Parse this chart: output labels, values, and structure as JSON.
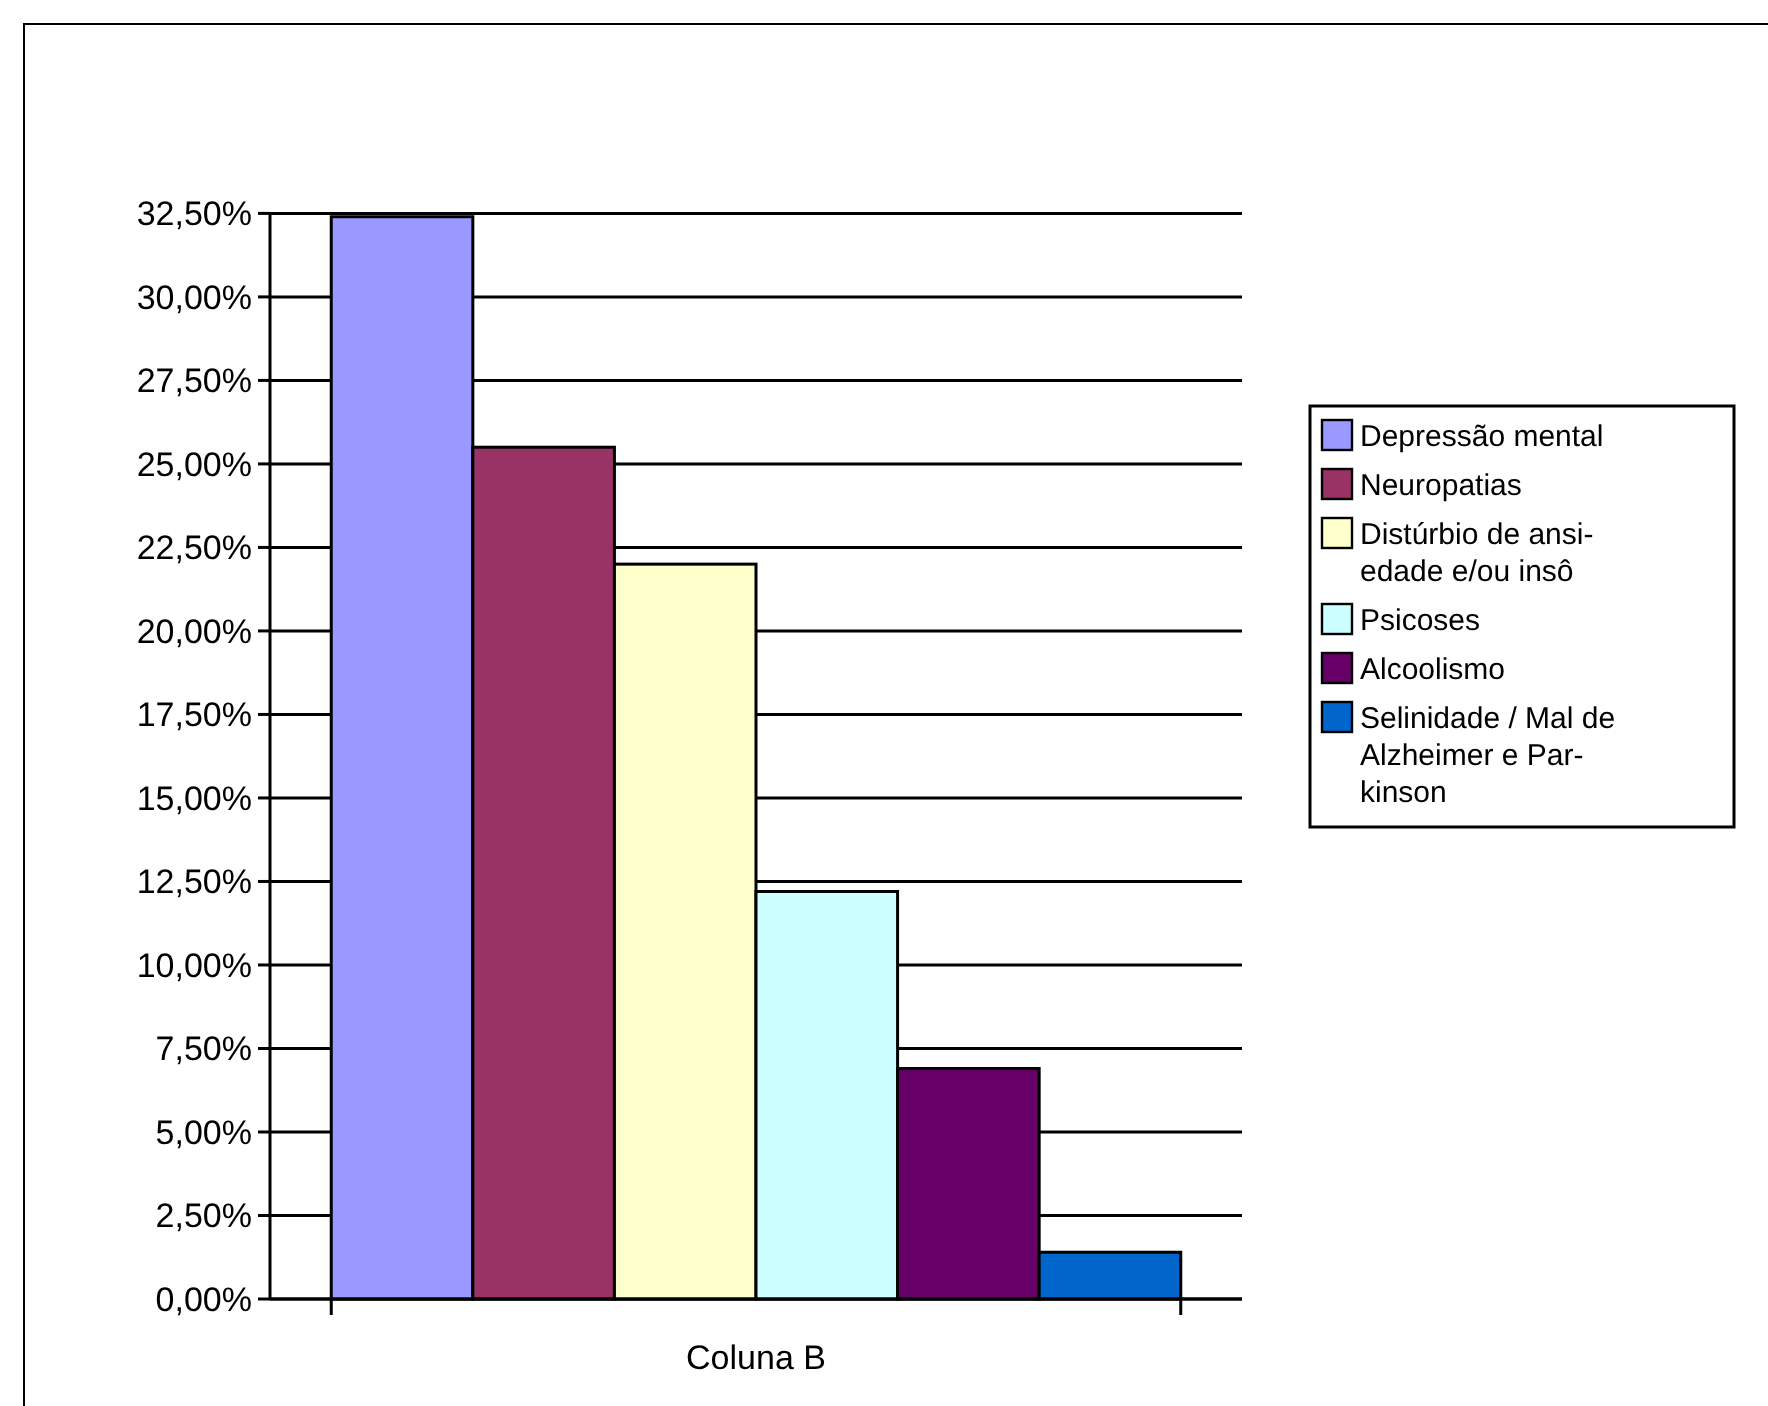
{
  "chart_data": {
    "type": "bar",
    "categories": [
      "Coluna B"
    ],
    "series": [
      {
        "name": "Depressão mental",
        "color": "#9999ff",
        "values": [
          32.4
        ]
      },
      {
        "name": "Neuropatias",
        "color": "#993366",
        "values": [
          25.5
        ]
      },
      {
        "name": "Distúrbio de ansi-\nedade e/ou insô",
        "color": "#ffffcc",
        "values": [
          22.0
        ]
      },
      {
        "name": "Psicoses",
        "color": "#ccffff",
        "values": [
          12.2
        ]
      },
      {
        "name": "Alcoolismo",
        "color": "#660066",
        "values": [
          6.9
        ]
      },
      {
        "name": "Selinidade / Mal de\nAlzheimer e Par-\nkinson",
        "color": "#0066cc",
        "values": [
          1.4
        ]
      }
    ],
    "ylim": [
      0,
      32.5
    ],
    "yticks": [
      {
        "value": 0,
        "label": "0,00%"
      },
      {
        "value": 2.5,
        "label": "2,50%"
      },
      {
        "value": 5,
        "label": "5,00%"
      },
      {
        "value": 7.5,
        "label": "7,50%"
      },
      {
        "value": 10,
        "label": "10,00%"
      },
      {
        "value": 12.5,
        "label": "12,50%"
      },
      {
        "value": 15,
        "label": "15,00%"
      },
      {
        "value": 17.5,
        "label": "17,50%"
      },
      {
        "value": 20,
        "label": "20,00%"
      },
      {
        "value": 22.5,
        "label": "22,50%"
      },
      {
        "value": 25,
        "label": "25,00%"
      },
      {
        "value": 27.5,
        "label": "27,50%"
      },
      {
        "value": 30,
        "label": "30,00%"
      },
      {
        "value": 32.5,
        "label": "32,50%"
      }
    ],
    "grid": "y",
    "legend": "right"
  }
}
